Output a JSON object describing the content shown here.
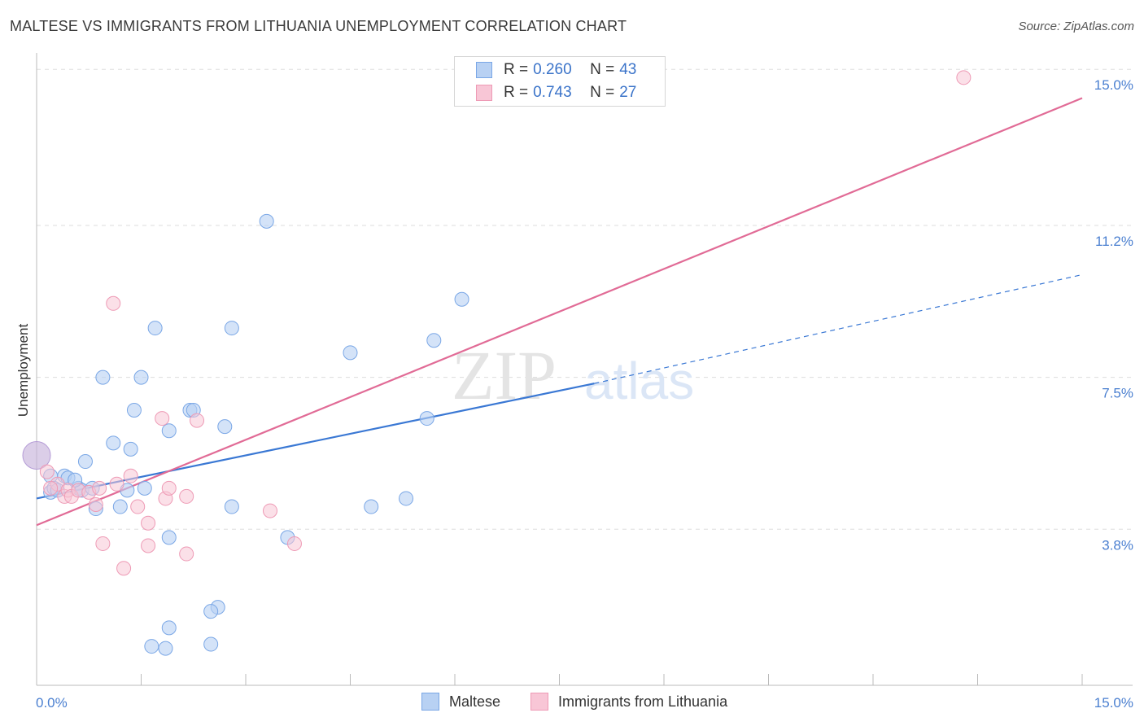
{
  "title": "MALTESE VS IMMIGRANTS FROM LITHUANIA UNEMPLOYMENT CORRELATION CHART",
  "source": "Source: ZipAtlas.com",
  "watermark": {
    "zip": "ZIP",
    "atlas": "atlas"
  },
  "legend": {
    "r_label": "R =",
    "n_label": "N =",
    "rows": [
      {
        "name": "Maltese",
        "r": "0.260",
        "n": "43",
        "fill": "#b8d1f3",
        "stroke": "#7aa7e6"
      },
      {
        "name": "Immigrants from Lithuania",
        "r": "0.743",
        "n": "27",
        "fill": "#f8c6d6",
        "stroke": "#ee9ab5"
      }
    ]
  },
  "colors": {
    "blue_line": "#3a78d4",
    "pink_line": "#e16b96",
    "tick_text": "#4a7fd0",
    "grid": "#dddddd"
  },
  "chart_data": {
    "type": "scatter",
    "title": "MALTESE VS IMMIGRANTS FROM LITHUANIA UNEMPLOYMENT CORRELATION CHART",
    "xlabel": "",
    "ylabel": "Unemployment",
    "xlim": [
      0,
      15
    ],
    "ylim": [
      0,
      15.5
    ],
    "x_tick_labels": [
      "0.0%",
      "15.0%"
    ],
    "y_ticks": [
      3.8,
      7.5,
      11.2,
      15.0
    ],
    "y_tick_labels": [
      "3.8%",
      "7.5%",
      "11.2%",
      "15.0%"
    ],
    "grid": true,
    "series": [
      {
        "name": "Maltese",
        "points": [
          [
            0.0,
            5.6
          ],
          [
            0.2,
            5.1
          ],
          [
            0.2,
            4.7
          ],
          [
            0.25,
            4.8
          ],
          [
            0.3,
            4.75
          ],
          [
            0.4,
            5.1
          ],
          [
            0.45,
            5.05
          ],
          [
            0.6,
            4.8
          ],
          [
            0.65,
            4.75
          ],
          [
            0.7,
            5.45
          ],
          [
            0.8,
            4.8
          ],
          [
            0.85,
            4.3
          ],
          [
            0.95,
            7.5
          ],
          [
            1.1,
            5.9
          ],
          [
            1.2,
            4.35
          ],
          [
            1.3,
            4.75
          ],
          [
            1.35,
            5.75
          ],
          [
            1.4,
            6.7
          ],
          [
            1.5,
            7.5
          ],
          [
            1.55,
            4.8
          ],
          [
            1.7,
            8.7
          ],
          [
            1.9,
            6.2
          ],
          [
            2.2,
            6.7
          ],
          [
            2.25,
            6.7
          ],
          [
            2.7,
            6.3
          ],
          [
            2.8,
            8.7
          ],
          [
            2.8,
            4.35
          ],
          [
            3.3,
            11.3
          ],
          [
            3.6,
            3.6
          ],
          [
            4.5,
            8.1
          ],
          [
            4.8,
            4.35
          ],
          [
            5.3,
            4.55
          ],
          [
            5.6,
            6.5
          ],
          [
            5.7,
            8.4
          ],
          [
            6.1,
            9.4
          ],
          [
            1.9,
            3.6
          ],
          [
            2.6,
            1.9
          ],
          [
            2.5,
            1.8
          ],
          [
            1.9,
            1.4
          ],
          [
            1.65,
            0.95
          ],
          [
            1.85,
            0.9
          ],
          [
            2.5,
            1.0
          ],
          [
            0.55,
            5.0
          ]
        ]
      },
      {
        "name": "Immigrants from Lithuania",
        "points": [
          [
            0.15,
            5.2
          ],
          [
            0.3,
            4.9
          ],
          [
            0.4,
            4.6
          ],
          [
            0.45,
            4.75
          ],
          [
            0.5,
            4.6
          ],
          [
            0.6,
            4.75
          ],
          [
            0.75,
            4.7
          ],
          [
            0.85,
            4.4
          ],
          [
            0.95,
            3.45
          ],
          [
            1.1,
            9.3
          ],
          [
            1.15,
            4.9
          ],
          [
            1.25,
            2.85
          ],
          [
            1.35,
            5.1
          ],
          [
            1.45,
            4.35
          ],
          [
            1.6,
            3.4
          ],
          [
            1.6,
            3.95
          ],
          [
            1.8,
            6.5
          ],
          [
            1.85,
            4.55
          ],
          [
            1.9,
            4.8
          ],
          [
            2.15,
            4.6
          ],
          [
            2.15,
            3.2
          ],
          [
            2.3,
            6.45
          ],
          [
            3.35,
            4.25
          ],
          [
            3.7,
            3.45
          ],
          [
            13.3,
            14.8
          ],
          [
            0.9,
            4.8
          ],
          [
            0.2,
            4.8
          ]
        ]
      }
    ],
    "trendlines": [
      {
        "series": "Maltese",
        "x0": 0,
        "y0": 4.55,
        "x1": 8.0,
        "y1": 7.35,
        "dashed_to_x": 15.0,
        "dashed_to_y": 10.0
      },
      {
        "series": "Immigrants from Lithuania",
        "x0": 0,
        "y0": 3.9,
        "x1": 15.0,
        "y1": 14.3
      }
    ]
  }
}
